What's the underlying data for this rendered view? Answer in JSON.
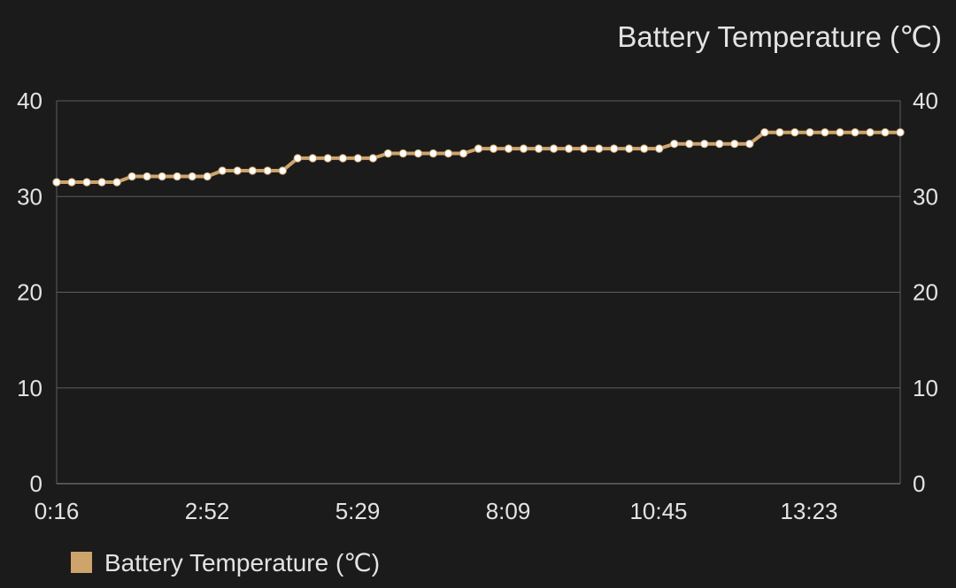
{
  "colors": {
    "background": "#1c1b1b",
    "series": "#cda46c",
    "marker": "#ffffff",
    "grid": "#5e5e5e",
    "text": "#e3e3e3"
  },
  "chart_data": {
    "type": "line",
    "title": "Battery Temperature (℃)",
    "xlabel": "",
    "ylabel": "",
    "ylim": [
      0,
      40
    ],
    "y_ticks": [
      0,
      10,
      20,
      30,
      40
    ],
    "secondary_y_axis": true,
    "x_tick_labels": [
      "0:16",
      "2:52",
      "5:29",
      "8:09",
      "10:45",
      "13:23"
    ],
    "grid": "horizontal",
    "legend_position": "bottom-left",
    "series": [
      {
        "name": "Battery Temperature (℃)",
        "values": [
          31.5,
          31.5,
          31.5,
          31.5,
          31.5,
          32.1,
          32.1,
          32.1,
          32.1,
          32.1,
          32.1,
          32.7,
          32.7,
          32.7,
          32.7,
          32.7,
          34.0,
          34.0,
          34.0,
          34.0,
          34.0,
          34.0,
          34.5,
          34.5,
          34.5,
          34.5,
          34.5,
          34.5,
          35.0,
          35.0,
          35.0,
          35.0,
          35.0,
          35.0,
          35.0,
          35.0,
          35.0,
          35.0,
          35.0,
          35.0,
          35.0,
          35.5,
          35.5,
          35.5,
          35.5,
          35.5,
          35.5,
          36.7,
          36.7,
          36.7,
          36.7,
          36.7,
          36.7,
          36.7,
          36.7,
          36.7,
          36.7
        ]
      }
    ]
  }
}
